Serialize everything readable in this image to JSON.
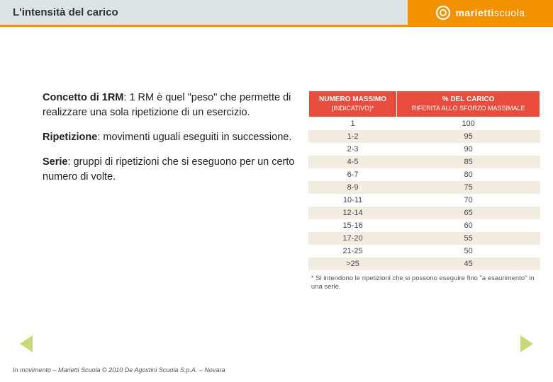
{
  "header": {
    "title": "L'intensità del carico",
    "brand_main": "marietti",
    "brand_sub": "scuola"
  },
  "colors": {
    "header_bg": "#dce4e8",
    "accent_orange": "#f39200",
    "table_header_bg": "#e84c3d",
    "table_row_alt": "#f3ece1",
    "nav_arrow": "#c9d97a"
  },
  "definitions": [
    {
      "term": "Concetto di 1RM",
      "text": ": 1 RM è quel \"peso\" che permette di realizzare una sola ripetizione di un esercizio."
    },
    {
      "term": "Ripetizione",
      "text": ": movimenti uguali eseguiti in successione."
    },
    {
      "term": "Serie",
      "text": ": gruppi di ripetizioni che si eseguono per un certo numero di volte."
    }
  ],
  "rm_table": {
    "type": "table",
    "columns": [
      {
        "title": "NUMERO MASSIMO",
        "sub": "(INDICATIVO)*"
      },
      {
        "title": "% DEL CARICO",
        "sub": "RIFERITA ALLO SFORZO MASSIMALE"
      }
    ],
    "rows": [
      [
        "1",
        "100"
      ],
      [
        "1-2",
        "95"
      ],
      [
        "2-3",
        "90"
      ],
      [
        "4-5",
        "85"
      ],
      [
        "6-7",
        "80"
      ],
      [
        "8-9",
        "75"
      ],
      [
        "10-11",
        "70"
      ],
      [
        "12-14",
        "65"
      ],
      [
        "15-16",
        "60"
      ],
      [
        "17-20",
        "55"
      ],
      [
        "21-25",
        "50"
      ],
      [
        ">25",
        "45"
      ]
    ],
    "footnote": "* Si intendono le ripetizioni che si possono eseguire fino \"a esaurimento\" in una serie."
  },
  "footer": {
    "text": "In movimento – Marietti Scuola © 2010 De Agostini Scuola S.p.A. – Novara"
  }
}
